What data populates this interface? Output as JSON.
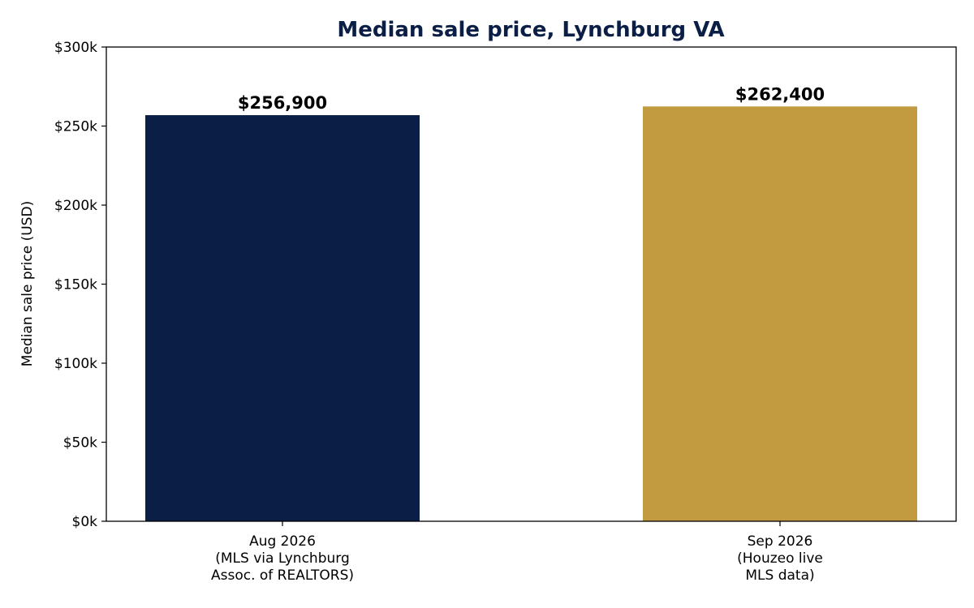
{
  "chart_data": {
    "type": "bar",
    "title": "Median sale price, Lynchburg VA",
    "xlabel": "",
    "ylabel": "Median sale price (USD)",
    "ylim": [
      0,
      300000
    ],
    "yticks": [
      {
        "value": 0,
        "label": "$0k"
      },
      {
        "value": 50000,
        "label": "$50k"
      },
      {
        "value": 100000,
        "label": "$100k"
      },
      {
        "value": 150000,
        "label": "$150k"
      },
      {
        "value": 200000,
        "label": "$200k"
      },
      {
        "value": 250000,
        "label": "$250k"
      },
      {
        "value": 300000,
        "label": "$300k"
      }
    ],
    "categories": [
      [
        "Aug 2026",
        "(MLS via Lynchburg",
        "Assoc. of REALTORS)"
      ],
      [
        "Sep 2026",
        "(Houzeo live",
        "MLS data)"
      ]
    ],
    "values": [
      256900,
      262400
    ],
    "value_labels": [
      "$256,900",
      "$262,400"
    ],
    "colors": [
      "#0b1e45",
      "#c29b40"
    ],
    "title_color": "#0b1e45",
    "grid": false,
    "legend": "none"
  }
}
